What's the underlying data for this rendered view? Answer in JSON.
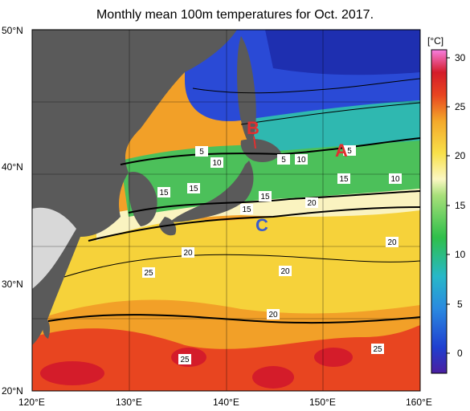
{
  "title": "Monthly mean 100m temperatures for Oct. 2017.",
  "lat_labels": [
    "50°N",
    "40°N",
    "30°N",
    "20°N"
  ],
  "lon_labels": [
    "120°E",
    "130°E",
    "140°E",
    "150°E",
    "160°E"
  ],
  "colorbar": {
    "unit": "[°C]",
    "ticks": [
      "30",
      "25",
      "20",
      "15",
      "10",
      "5",
      "0"
    ]
  },
  "region_markers": {
    "A": "A",
    "B": "B",
    "C": "C"
  },
  "contour_labels": [
    "5",
    "10",
    "5",
    "10",
    "5",
    "15",
    "15",
    "15",
    "15",
    "10",
    "15",
    "20",
    "20",
    "25",
    "20",
    "20",
    "20",
    "25",
    "25"
  ],
  "colors": {
    "land": "#5a5a5a",
    "marker": "#e03030",
    "marker_c": "#3a5ccc"
  }
}
